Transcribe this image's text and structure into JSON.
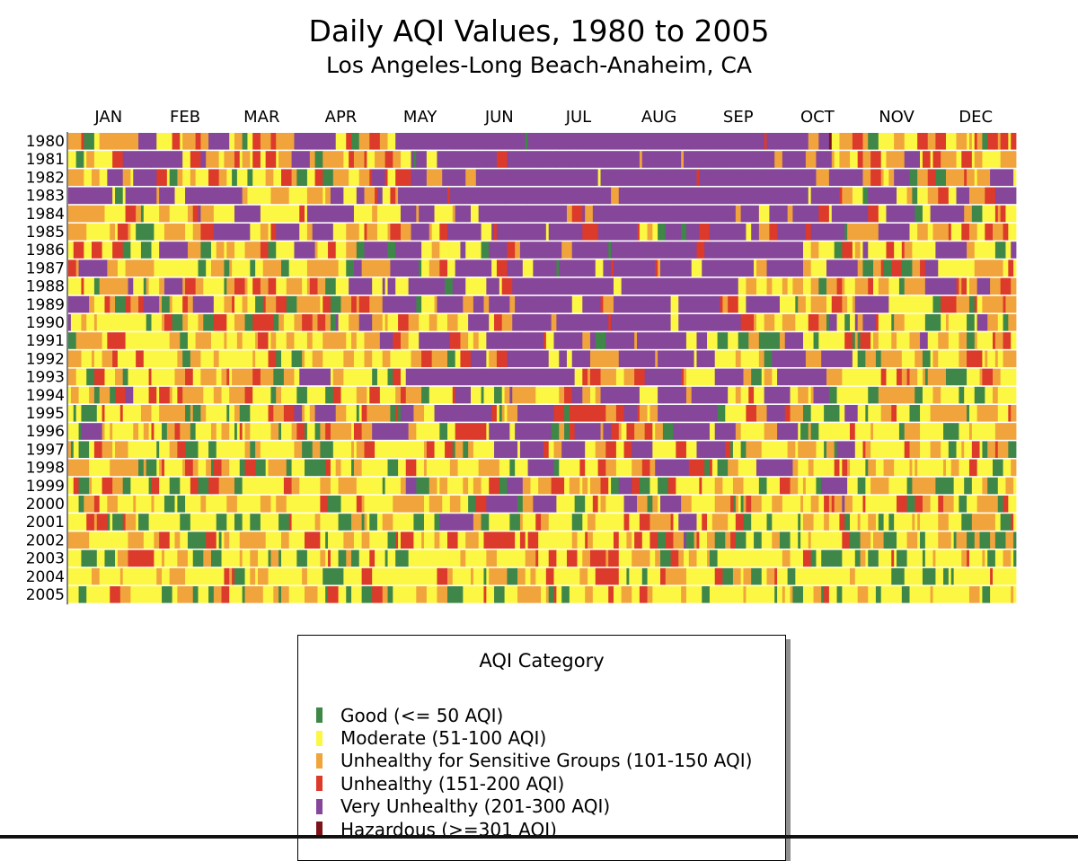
{
  "chart_data": {
    "type": "heatmap",
    "title": "Daily AQI Values, 1980 to 2005",
    "subtitle": "Los Angeles-Long Beach-Anaheim, CA",
    "x_axis": "day of year",
    "months": [
      "JAN",
      "FEB",
      "MAR",
      "APR",
      "MAY",
      "JUN",
      "JUL",
      "AUG",
      "SEP",
      "OCT",
      "NOV",
      "DEC"
    ],
    "years": [
      "1980",
      "1981",
      "1982",
      "1983",
      "1984",
      "1985",
      "1986",
      "1987",
      "1988",
      "1989",
      "1990",
      "1991",
      "1992",
      "1993",
      "1994",
      "1995",
      "1996",
      "1997",
      "1998",
      "1999",
      "2000",
      "2001",
      "2002",
      "2003",
      "2004",
      "2005"
    ],
    "days_per_year": 365,
    "cell_values": "approximate - category of each day estimated from overall pattern: summer months (May-Sep) dominated by Very Unhealthy in the 1980s, shifting to Moderate/Unhealthy for Sensitive Groups by the 2000s",
    "legend": {
      "title": "AQI Category",
      "items": [
        {
          "label": "Good (<= 50 AQI)",
          "color": "#3e8748"
        },
        {
          "label": "Moderate (51-100 AQI)",
          "color": "#fcf743"
        },
        {
          "label": "Unhealthy for Sensitive Groups (101-150 AQI)",
          "color": "#f0a43b"
        },
        {
          "label": "Unhealthy (151-200 AQI)",
          "color": "#dc3a2a"
        },
        {
          "label": "Very Unhealthy (201-300 AQI)",
          "color": "#86469a"
        },
        {
          "label": "Hazardous (>=301 AQI)",
          "color": "#7b1318"
        }
      ]
    }
  }
}
